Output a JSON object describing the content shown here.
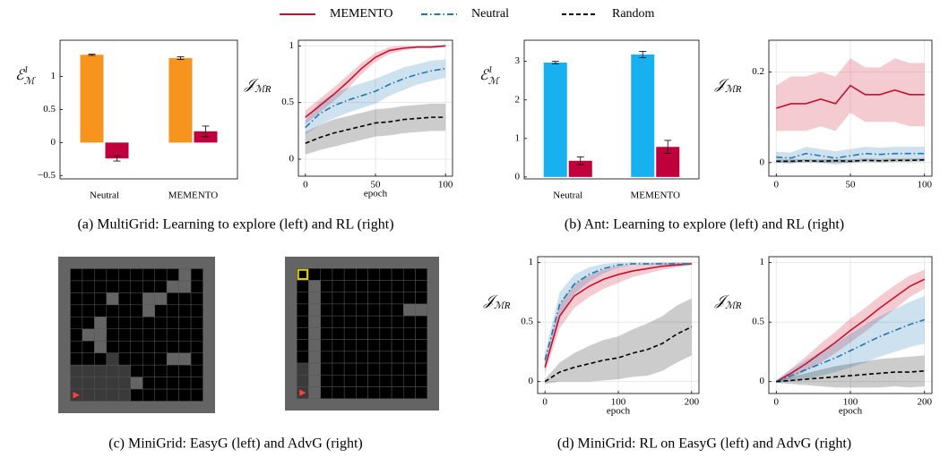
{
  "legend": {
    "position": "top",
    "entries": [
      {
        "name": "MEMENTO",
        "color": "#c8102e",
        "style": "solid"
      },
      {
        "name": "Neutral",
        "color": "#1f77b4",
        "style": "dashdot"
      },
      {
        "name": "Random",
        "color": "#000000",
        "style": "dashed"
      }
    ]
  },
  "chart_data": [
    {
      "type": "bar",
      "ylabel": {
        "base": "ℰ",
        "sup": "1",
        "sub": "ℳ"
      },
      "categories": [
        "Neutral",
        "MEMENTO"
      ],
      "series": [
        {
          "color": "#f7941d",
          "values": [
            1.33,
            1.28
          ],
          "errors": [
            0.01,
            0.02
          ]
        },
        {
          "color": "#c0003c",
          "values": [
            -0.24,
            0.17
          ],
          "errors": [
            0.04,
            0.08
          ]
        }
      ],
      "ylim": [
        -0.55,
        1.55
      ],
      "yticks": [
        {
          "value": -0.5,
          "label": "−0.5"
        },
        0,
        0.5,
        1
      ]
    },
    {
      "type": "line",
      "ylabel": {
        "base": "𝒥",
        "sub": "ℳR"
      },
      "xlabel": "epoch",
      "grid": true,
      "x": [
        0,
        10,
        20,
        30,
        40,
        50,
        60,
        70,
        80,
        90,
        100
      ],
      "series": [
        {
          "values": [
            0.37,
            0.47,
            0.57,
            0.68,
            0.8,
            0.9,
            0.96,
            0.98,
            0.99,
            0.99,
            1.0
          ],
          "spread": [
            0.06,
            0.06,
            0.06,
            0.06,
            0.05,
            0.04,
            0.03,
            0.02,
            0.01,
            0.01,
            0.01
          ]
        },
        {
          "values": [
            0.28,
            0.4,
            0.47,
            0.52,
            0.56,
            0.6,
            0.66,
            0.71,
            0.75,
            0.78,
            0.8
          ],
          "spread": [
            0.06,
            0.1,
            0.11,
            0.11,
            0.11,
            0.11,
            0.1,
            0.1,
            0.09,
            0.09,
            0.08
          ]
        },
        {
          "values": [
            0.14,
            0.19,
            0.23,
            0.26,
            0.29,
            0.32,
            0.33,
            0.35,
            0.36,
            0.37,
            0.37
          ],
          "spread": [
            0.1,
            0.11,
            0.12,
            0.12,
            0.12,
            0.12,
            0.12,
            0.12,
            0.12,
            0.12,
            0.12
          ]
        }
      ],
      "xlim": [
        -5,
        105
      ],
      "xticks": [
        0,
        50,
        100
      ],
      "ylim": [
        -0.15,
        1.05
      ],
      "yticks": [
        0,
        0.5,
        1
      ]
    },
    {
      "type": "bar",
      "ylabel": {
        "base": "ℰ",
        "sup": "1",
        "sub": "ℳ"
      },
      "categories": [
        "Neutral",
        "MEMENTO"
      ],
      "series": [
        {
          "color": "#16b1ee",
          "values": [
            2.97,
            3.18
          ],
          "errors": [
            0.03,
            0.08
          ]
        },
        {
          "color": "#c0003c",
          "values": [
            0.42,
            0.78
          ],
          "errors": [
            0.1,
            0.17
          ]
        }
      ],
      "ylim": [
        -0.05,
        3.55
      ],
      "yticks": [
        0,
        1,
        2,
        3
      ]
    },
    {
      "type": "line",
      "ylabel": {
        "base": "𝒥",
        "sub": "ℳR"
      },
      "grid": true,
      "x": [
        0,
        10,
        20,
        30,
        40,
        50,
        60,
        70,
        80,
        90,
        100
      ],
      "series": [
        {
          "values": [
            0.12,
            0.13,
            0.13,
            0.14,
            0.13,
            0.17,
            0.15,
            0.15,
            0.16,
            0.15,
            0.15
          ],
          "spread": [
            0.05,
            0.06,
            0.06,
            0.06,
            0.06,
            0.06,
            0.06,
            0.06,
            0.07,
            0.07,
            0.07
          ]
        },
        {
          "values": [
            0.012,
            0.01,
            0.02,
            0.015,
            0.01,
            0.015,
            0.02,
            0.018,
            0.02,
            0.02,
            0.02
          ],
          "spread": [
            0.012,
            0.012,
            0.015,
            0.015,
            0.015,
            0.015,
            0.015,
            0.015,
            0.015,
            0.015,
            0.015
          ]
        },
        {
          "values": [
            0.003,
            0.003,
            0.004,
            0.003,
            0.004,
            0.003,
            0.005,
            0.004,
            0.005,
            0.005,
            0.006
          ],
          "spread": [
            0.004,
            0.004,
            0.004,
            0.004,
            0.004,
            0.004,
            0.004,
            0.004,
            0.004,
            0.004,
            0.004
          ]
        }
      ],
      "xlim": [
        -5,
        105
      ],
      "xticks": [
        0,
        50,
        100
      ],
      "ylim": [
        -0.03,
        0.27
      ],
      "yticks": [
        0,
        0.2
      ]
    },
    {
      "type": "line",
      "ylabel": {
        "base": "𝒥",
        "sub": "ℳR"
      },
      "xlabel": "epoch",
      "grid": true,
      "x": [
        0,
        20,
        40,
        60,
        80,
        100,
        120,
        140,
        160,
        180,
        200
      ],
      "series": [
        {
          "values": [
            0.12,
            0.55,
            0.72,
            0.8,
            0.86,
            0.9,
            0.93,
            0.95,
            0.97,
            0.98,
            0.99
          ],
          "spread": [
            0.05,
            0.1,
            0.1,
            0.09,
            0.08,
            0.07,
            0.05,
            0.04,
            0.03,
            0.02,
            0.01
          ]
        },
        {
          "values": [
            0.18,
            0.65,
            0.82,
            0.9,
            0.95,
            0.98,
            0.99,
            0.99,
            0.99,
            0.99,
            0.99
          ],
          "spread": [
            0.06,
            0.1,
            0.08,
            0.06,
            0.04,
            0.02,
            0.01,
            0.01,
            0.01,
            0.01,
            0.01
          ]
        },
        {
          "values": [
            0,
            0.08,
            0.12,
            0.15,
            0.18,
            0.2,
            0.24,
            0.27,
            0.32,
            0.4,
            0.46
          ],
          "spread": [
            0.02,
            0.08,
            0.12,
            0.15,
            0.17,
            0.18,
            0.2,
            0.22,
            0.23,
            0.24,
            0.24
          ]
        }
      ],
      "xlim": [
        -10,
        210
      ],
      "xticks": [
        0,
        100,
        200
      ],
      "ylim": [
        -0.1,
        1.05
      ],
      "yticks": [
        0,
        0.5,
        1
      ]
    },
    {
      "type": "line",
      "ylabel": {
        "base": "𝒥",
        "sub": "ℳR"
      },
      "xlabel": "epoch",
      "grid": true,
      "x": [
        0,
        20,
        40,
        60,
        80,
        100,
        120,
        140,
        160,
        180,
        200
      ],
      "series": [
        {
          "values": [
            0,
            0.07,
            0.15,
            0.24,
            0.33,
            0.43,
            0.52,
            0.62,
            0.71,
            0.8,
            0.86
          ],
          "spread": [
            0.01,
            0.04,
            0.06,
            0.08,
            0.09,
            0.1,
            0.1,
            0.1,
            0.1,
            0.09,
            0.08
          ]
        },
        {
          "values": [
            0,
            0.05,
            0.1,
            0.15,
            0.2,
            0.26,
            0.32,
            0.38,
            0.43,
            0.48,
            0.52
          ],
          "spread": [
            0.01,
            0.05,
            0.08,
            0.1,
            0.12,
            0.14,
            0.16,
            0.17,
            0.18,
            0.19,
            0.2
          ]
        },
        {
          "values": [
            0,
            0.01,
            0.02,
            0.03,
            0.04,
            0.05,
            0.06,
            0.07,
            0.08,
            0.08,
            0.09
          ],
          "spread": [
            0.01,
            0.03,
            0.05,
            0.07,
            0.09,
            0.1,
            0.11,
            0.12,
            0.12,
            0.13,
            0.13
          ]
        }
      ],
      "xlim": [
        -10,
        210
      ],
      "xticks": [
        0,
        100,
        200
      ],
      "ylim": [
        -0.1,
        1.05
      ],
      "yticks": [
        0,
        0.5,
        1
      ]
    }
  ],
  "captions": [
    "(a) MultiGrid: Learning to explore (left) and RL (right)",
    "(b) Ant: Learning to explore (left) and RL (right)",
    "(c) MiniGrid: EasyG (left) and AdvG (right)",
    "(d) MiniGrid: RL on EasyG (left) and AdvG (right)"
  ]
}
